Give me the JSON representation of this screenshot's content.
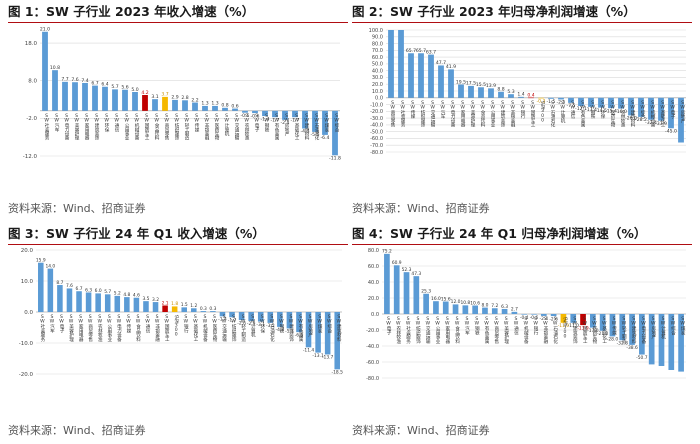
{
  "source_text": "资料来源：Wind、招商证券",
  "colors": {
    "blue": "#5b9bd5",
    "orange": "#f5b800",
    "red": "#c00000",
    "title_rule": "#b00d12",
    "grid": "#d9d9d9"
  },
  "panels": [
    {
      "title": "图 1：SW 子行业 2023 年收入增速（%）",
      "source": "资料来源：Wind、招商证券"
    },
    {
      "title": "图 2：SW 子行业 2023 年归母净利润增速（%）",
      "source": "资料来源：Wind、招商证券"
    },
    {
      "title": "图 3：SW 子行业 24 年 Q1 收入增速（%）",
      "source": "资料来源：Wind、招商证券"
    },
    {
      "title": "图 4：SW 子行业 24 年 Q1 归母净利润增速（%）",
      "source": "资料来源：Wind、招商证券"
    }
  ],
  "chart_data": [
    {
      "type": "bar",
      "ylim": [
        -12,
        22
      ],
      "yticks": [
        -12,
        -2,
        8,
        18
      ],
      "ytick_labels": [
        "-12.0",
        "-2.0",
        "8.0",
        "18.0"
      ],
      "categories": [
        "SW社会服务",
        "SW汽车",
        "SW电力设备",
        "SW美容护理",
        "SW家用电器",
        "SW建筑装饰",
        "SW环保",
        "SW通信",
        "SW公用事业",
        "SW机械设备",
        "SW国防军工",
        "SW食品饮料",
        "SW商贸零售",
        "SW纺织服饰",
        "SW轻工制造",
        "SW传媒",
        "SW非银金融",
        "SW医药生物",
        "SW计算机",
        "SW交通运输",
        "SW农林牧渔",
        "SW电子",
        "SW钢铁",
        "SW有色金属",
        "SW房地产",
        "SW基础化工",
        "SW建筑材料",
        "SW石油石化",
        "SW煤炭",
        "SW综合"
      ],
      "values": [
        21.0,
        10.8,
        7.7,
        7.6,
        7.4,
        6.7,
        6.4,
        5.7,
        5.6,
        5.0,
        4.2,
        3.1,
        3.7,
        2.9,
        2.8,
        2.2,
        1.3,
        1.3,
        0.8,
        0.6,
        -0.5,
        -0.6,
        -1.4,
        -1.7,
        -2.4,
        -1.7,
        -4.7,
        -5.6,
        -6.4,
        -11.8
      ],
      "value_labels": [
        "21.0",
        "10.8",
        "7.7",
        "7.6",
        "7.4",
        "6.7",
        "6.4",
        "5.7",
        "5.6",
        "5.0",
        "4.2",
        "3.1",
        "3.7",
        "2.9",
        "2.8",
        "2.2",
        "1.3",
        "1.3",
        "0.8",
        "0.6",
        "-0.5",
        "-0.6",
        "-1.4",
        "-1.7",
        "-2.4",
        "-1.7",
        "-4.7",
        "-5.6",
        "-6.4",
        "-11.8"
      ],
      "highlights": {
        "10": "red",
        "12": "orange"
      }
    },
    {
      "type": "bar",
      "ylim": [
        -80,
        100
      ],
      "yticks": [
        -80,
        -70,
        -60,
        -50,
        -40,
        -30,
        -20,
        -10,
        0,
        10,
        20,
        30,
        40,
        50,
        60,
        70,
        80,
        90,
        100
      ],
      "ytick_labels": [
        "-80.0",
        "-70.0",
        "-60.0",
        "-50.0",
        "-40.0",
        "-30.0",
        "-20.0",
        "-10.0",
        "0.0",
        "10.0",
        "20.0",
        "30.0",
        "40.0",
        "50.0",
        "60.0",
        "70.0",
        "80.0",
        "90.0",
        "100.0"
      ],
      "categories": [
        "SW商贸零售",
        "SW社会服务",
        "SW传媒",
        "SW纺织服饰",
        "SW交通运输",
        "SW汽车",
        "SW电力设备",
        "SW家用电器",
        "SW美容护理",
        "SW食品饮料",
        "SW公用事业",
        "SW建筑装饰",
        "SW非银金融",
        "SW银行",
        "SW国防军工",
        "沪深300",
        "SW石油石化",
        "SW计算机",
        "SW通信",
        "SW有色金属",
        "SW钢铁",
        "SW环保",
        "SW医药生物",
        "SW农林牧渔",
        "SW建筑材料",
        "SW综合",
        "SW机械设备",
        "SW基础化工",
        "SW电子",
        "SW房地产"
      ],
      "values": [
        100.0,
        100.0,
        65.7,
        65.7,
        63.7,
        47.7,
        41.9,
        19.5,
        17.5,
        15.5,
        13.9,
        8.8,
        5.3,
        1.4,
        0.4,
        -0.3,
        -1.5,
        -2.5,
        -7.5,
        -12.1,
        -13.4,
        -14.5,
        -15.4,
        -16.0,
        -26.0,
        -28.2,
        -32.4,
        -33.9,
        -45.0,
        -66.0
      ],
      "value_labels": [
        "",
        "",
        "65.7",
        "65.7",
        "63.7",
        "47.7",
        "41.9",
        "19.5",
        "17.5",
        "15.5",
        "13.9",
        "8.8",
        "5.3",
        "1.4",
        "0.4",
        "-0.3",
        "-1.5",
        "-2.5",
        "-7.5",
        "-12.1",
        "-13.4",
        "-14.5",
        "-15.4",
        "-16.0",
        "-26.0",
        "-28.2",
        "-32.4",
        "-33.9",
        "-45.0",
        ""
      ],
      "highlights": {
        "14": "red",
        "15": "orange"
      }
    },
    {
      "type": "bar",
      "ylim": [
        -20,
        20
      ],
      "yticks": [
        -20,
        -10,
        0,
        10,
        20
      ],
      "ytick_labels": [
        "-20.0",
        "-10.0",
        "0.0",
        "10.0",
        "20.0"
      ],
      "categories": [
        "SW社会服务",
        "SW汽车",
        "SW电子",
        "SW美容护理",
        "SW家用电器",
        "SW商贸零售",
        "SW农林牧渔",
        "SW公用事业",
        "SW电力设备",
        "SW传媒",
        "SW食品饮料",
        "SW通信",
        "SW非银金融",
        "SW国防军工",
        "沪深300",
        "SW银行",
        "SW基础化工",
        "SW机械设备",
        "SW医药生物",
        "SW交通运输",
        "SW纺织服饰",
        "SW轻工制造",
        "SW计算机",
        "SW环保",
        "SW石油石化",
        "SW钢铁",
        "SW建筑装饰",
        "SW有色金属",
        "SW房地产",
        "SW煤炭",
        "SW综合",
        "SW建筑材料"
      ],
      "values": [
        15.9,
        14.0,
        8.7,
        7.6,
        6.7,
        6.3,
        6.0,
        5.7,
        5.2,
        4.8,
        4.6,
        3.5,
        3.2,
        2.1,
        1.8,
        1.5,
        1.2,
        0.3,
        0.3,
        -1.4,
        -1.7,
        -2.6,
        -2.9,
        -3.1,
        -3.5,
        -4.8,
        -5.3,
        -6.5,
        -11.4,
        -13.1,
        -13.7,
        -18.5
      ],
      "value_labels": [
        "15.9",
        "14.0",
        "8.7",
        "7.6",
        "6.7",
        "6.3",
        "6.0",
        "5.7",
        "5.2",
        "4.8",
        "4.6",
        "3.5",
        "3.2",
        "2.1",
        "1.8",
        "1.5",
        "1.2",
        "0.3",
        "0.3",
        "-1.4",
        "-1.7",
        "-2.6",
        "-2.9",
        "-3.1",
        "-3.5",
        "-4.8",
        "-5.3",
        "-6.5",
        "-11.4",
        "-13.1",
        "-13.7",
        "-18.5"
      ],
      "highlights": {
        "13": "red",
        "14": "orange"
      }
    },
    {
      "type": "bar",
      "ylim": [
        -80,
        80
      ],
      "yticks": [
        -80,
        -60,
        -40,
        -20,
        0,
        20,
        40,
        60,
        80
      ],
      "ytick_labels": [
        "-80.0",
        "-60.0",
        "-40.0",
        "-20.0",
        "0.0",
        "20.0",
        "40.0",
        "60.0",
        "80.0"
      ],
      "categories": [
        "SW电子",
        "SW农林牧渔",
        "SW社会服务",
        "SW纺织服饰",
        "SW交通运输",
        "SW公用事业",
        "SW家用电器",
        "SW食品饮料",
        "SW汽车",
        "SW钢铁",
        "SW有色金属",
        "SW商贸零售",
        "SW美容护理",
        "SW通信",
        "SW机械设备",
        "SW银行",
        "SW非银金融",
        "SW石油石化",
        "沪深300",
        "SW建筑装饰",
        "SW国防军工",
        "SW医药生物",
        "SW基础化工",
        "SW传媒",
        "SW轻工制造",
        "SW建筑材料",
        "SW电力设备",
        "SW房地产",
        "SW计算机",
        "SW综合",
        "SW煤炭"
      ],
      "values": [
        75.2,
        60.9,
        52.3,
        47.3,
        25.3,
        16.0,
        15.6,
        12.0,
        10.8,
        10.6,
        8.0,
        7.2,
        6.3,
        2.7,
        -0.4,
        -0.6,
        -2.4,
        -2.6,
        -11.0,
        -11.0,
        -13.9,
        -17.0,
        -21.0,
        -28.0,
        -32.8,
        -38.6,
        -50.7,
        -63.0,
        -65.0,
        -70.0,
        -72.0
      ],
      "value_labels": [
        "75.2",
        "60.9",
        "52.3",
        "47.3",
        "25.3",
        "16.0",
        "15.6",
        "12.0",
        "10.8",
        "10.6",
        "8.0",
        "7.2",
        "6.3",
        "2.7",
        "-0.4",
        "-0.6",
        "-2.4",
        "-2.6",
        "-11.0",
        "-11.0",
        "-13.9",
        "-17.0",
        "-21.0",
        "-28.0",
        "-32.8",
        "-38.6",
        "-50.7",
        "",
        "",
        "",
        ""
      ],
      "highlights": {
        "20": "red",
        "18": "orange"
      }
    }
  ]
}
